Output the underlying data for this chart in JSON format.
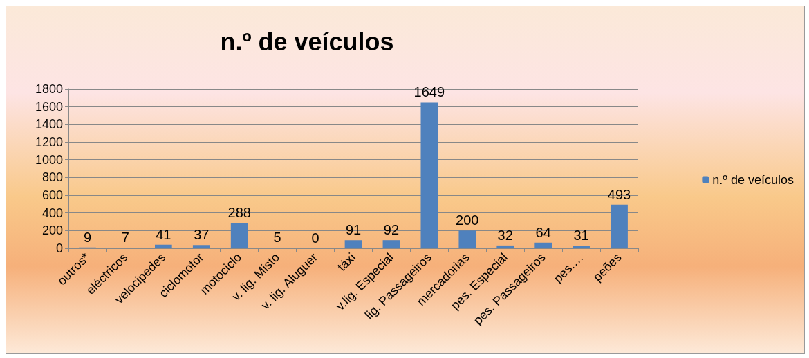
{
  "chart_data": {
    "type": "bar",
    "title": "n.º de veículos",
    "categories": [
      "outros*",
      "eléctricos",
      "velocipedes",
      "ciclomotor",
      "motociclo",
      "v. lig. Misto",
      "v. lig. Aluguer",
      "táxi",
      "v.lig. Especial",
      "lig. Passageiros",
      "mercadorias",
      "pes. Especial",
      "pes. Passageiros",
      "pes.…",
      "peões"
    ],
    "series": [
      {
        "name": "n.º de veículos",
        "color": "#4f81bd",
        "values": [
          9,
          7,
          41,
          37,
          288,
          5,
          0,
          91,
          92,
          1649,
          200,
          32,
          64,
          31,
          493
        ]
      }
    ],
    "ylim": [
      0,
      1800
    ],
    "yticks": [
      0,
      200,
      400,
      600,
      800,
      1000,
      1200,
      1400,
      1600,
      1800
    ],
    "grid": "y",
    "legend": "right",
    "data_labels": true
  }
}
